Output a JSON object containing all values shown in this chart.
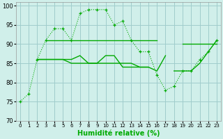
{
  "bg_color": "#d0efea",
  "grid_color": "#a0cccc",
  "line_color": "#00aa00",
  "xlabel": "Humidité relative (%)",
  "xlabel_fontsize": 7,
  "ylim": [
    70,
    101
  ],
  "xlim": [
    -0.5,
    23.5
  ],
  "yticks": [
    70,
    75,
    80,
    85,
    90,
    95,
    100
  ],
  "xticks": [
    0,
    1,
    2,
    3,
    4,
    5,
    6,
    7,
    8,
    9,
    10,
    11,
    12,
    13,
    14,
    15,
    16,
    17,
    18,
    19,
    20,
    21,
    22,
    23
  ],
  "line1_x": [
    0,
    1,
    2,
    3,
    4,
    5,
    6,
    7,
    8,
    9,
    10,
    11,
    12,
    13,
    14,
    15,
    16,
    17,
    18,
    19,
    20,
    21,
    22,
    23
  ],
  "line1_y": [
    75,
    77,
    86,
    91,
    94,
    94,
    91,
    98,
    99,
    99,
    99,
    95,
    96,
    91,
    88,
    88,
    82,
    78,
    79,
    83,
    83,
    86,
    88,
    91
  ],
  "line2a_x": [
    3,
    4,
    5,
    6,
    7,
    8,
    9,
    10,
    11,
    12,
    13,
    14,
    15,
    16
  ],
  "line2a_y": [
    91,
    91,
    91,
    91,
    91,
    91,
    91,
    91,
    91,
    91,
    91,
    91,
    91,
    91
  ],
  "line2b_x": [
    19,
    20,
    21,
    22,
    23
  ],
  "line2b_y": [
    90,
    90,
    90,
    90,
    90
  ],
  "line3_x": [
    2,
    3,
    4,
    5,
    6,
    7,
    8,
    9,
    10,
    11,
    12,
    13,
    14,
    15,
    16,
    17
  ],
  "line3_y": [
    86,
    86,
    86,
    86,
    86,
    87,
    85,
    85,
    87,
    87,
    84,
    84,
    84,
    84,
    83,
    87
  ],
  "line3b_x": [
    18,
    19,
    20,
    21,
    22,
    23
  ],
  "line3b_y": [
    83,
    83,
    83,
    85,
    88,
    91
  ],
  "line4_x": [
    2,
    3,
    4,
    5,
    6,
    7,
    8,
    9,
    10,
    11,
    12,
    13,
    14,
    15
  ],
  "line4_y": [
    86,
    86,
    86,
    86,
    85,
    85,
    85,
    85,
    85,
    85,
    85,
    85,
    84,
    84
  ]
}
